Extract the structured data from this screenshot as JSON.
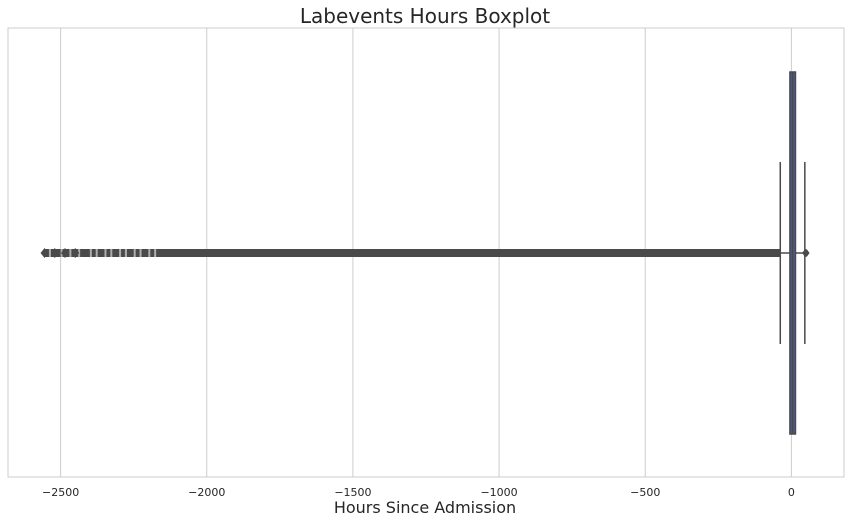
{
  "chart_data": {
    "type": "boxplot",
    "title": "Labevents Hours Boxplot",
    "xlabel": "Hours Since Admission",
    "ylabel": "",
    "xlim": [
      -2680,
      180
    ],
    "xticks": [
      -2500,
      -2000,
      -1500,
      -1000,
      -500,
      0
    ],
    "xtick_labels": [
      "−2500",
      "−2000",
      "−1500",
      "−1000",
      "−500",
      "0"
    ],
    "grid": "vertical",
    "orientation": "horizontal",
    "box": {
      "whisker_low": -38,
      "q1": -5,
      "median": 4,
      "q3": 14,
      "whisker_high": 46
    },
    "outliers": {
      "low_range": [
        -2555,
        -39
      ],
      "high_range": [
        47,
        52
      ]
    },
    "colors": {
      "box_fill": "#4c5b8a",
      "lines": "#4a4a4a",
      "grid": "#cccccc",
      "frame": "#cccccc"
    }
  }
}
